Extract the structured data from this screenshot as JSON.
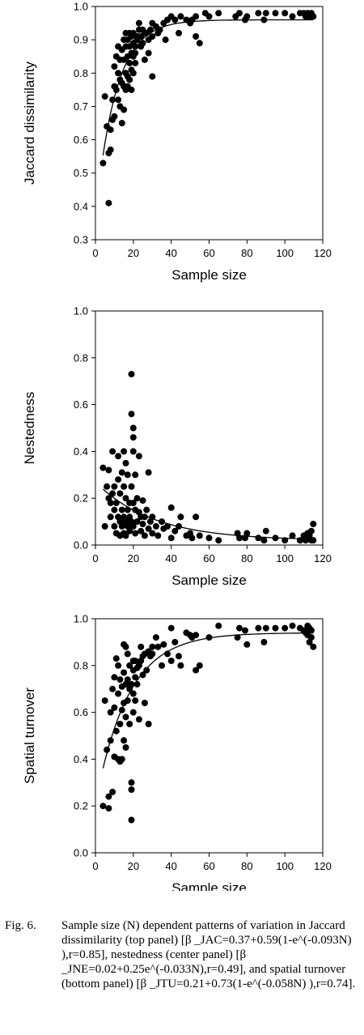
{
  "chart_data": [
    {
      "type": "scatter",
      "xlabel": "Sample size",
      "ylabel": "Jaccard dissimilarity",
      "xlim": [
        0,
        120
      ],
      "ylim": [
        0.3,
        1.0
      ],
      "xticks": [
        "0",
        "20",
        "40",
        "60",
        "80",
        "100",
        "120"
      ],
      "yticks": [
        "0.3",
        "0.4",
        "0.5",
        "0.6",
        "0.7",
        "0.8",
        "0.9",
        "1.0"
      ],
      "grid": false,
      "fit": {
        "a": 0.37,
        "b": 0.59,
        "k": 0.093,
        "form": "a + b*(1 - exp(-k*N))"
      },
      "points": [
        [
          4,
          0.53
        ],
        [
          5,
          0.73
        ],
        [
          6,
          0.64
        ],
        [
          7,
          0.56
        ],
        [
          7,
          0.41
        ],
        [
          8,
          0.63
        ],
        [
          8,
          0.57
        ],
        [
          9,
          0.72
        ],
        [
          9,
          0.66
        ],
        [
          10,
          0.82
        ],
        [
          10,
          0.76
        ],
        [
          10,
          0.67
        ],
        [
          11,
          0.85
        ],
        [
          11,
          0.75
        ],
        [
          12,
          0.88
        ],
        [
          12,
          0.8
        ],
        [
          12,
          0.72
        ],
        [
          13,
          0.84
        ],
        [
          13,
          0.78
        ],
        [
          13,
          0.7
        ],
        [
          14,
          0.87
        ],
        [
          14,
          0.77
        ],
        [
          14,
          0.65
        ],
        [
          15,
          0.9
        ],
        [
          15,
          0.84
        ],
        [
          15,
          0.76
        ],
        [
          15,
          0.69
        ],
        [
          16,
          0.92
        ],
        [
          16,
          0.88
        ],
        [
          16,
          0.8
        ],
        [
          16,
          0.75
        ],
        [
          17,
          0.9
        ],
        [
          17,
          0.85
        ],
        [
          17,
          0.79
        ],
        [
          17,
          0.76
        ],
        [
          18,
          0.92
        ],
        [
          18,
          0.88
        ],
        [
          18,
          0.83
        ],
        [
          18,
          0.78
        ],
        [
          19,
          0.91
        ],
        [
          19,
          0.86
        ],
        [
          19,
          0.81
        ],
        [
          19,
          0.75
        ],
        [
          20,
          0.92
        ],
        [
          20,
          0.89
        ],
        [
          20,
          0.85
        ],
        [
          20,
          0.8
        ],
        [
          21,
          0.88
        ],
        [
          21,
          0.83
        ],
        [
          21,
          0.86
        ],
        [
          22,
          0.91
        ],
        [
          22,
          0.9
        ],
        [
          23,
          0.95
        ],
        [
          23,
          0.93
        ],
        [
          24,
          0.91
        ],
        [
          24,
          0.88
        ],
        [
          25,
          0.93
        ],
        [
          25,
          0.89
        ],
        [
          26,
          0.92
        ],
        [
          26,
          0.84
        ],
        [
          27,
          0.92
        ],
        [
          28,
          0.9
        ],
        [
          28,
          0.86
        ],
        [
          29,
          0.93
        ],
        [
          30,
          0.95
        ],
        [
          30,
          0.91
        ],
        [
          30,
          0.79
        ],
        [
          32,
          0.94
        ],
        [
          33,
          0.92
        ],
        [
          34,
          0.93
        ],
        [
          36,
          0.95
        ],
        [
          37,
          0.9
        ],
        [
          38,
          0.96
        ],
        [
          40,
          0.97
        ],
        [
          42,
          0.96
        ],
        [
          44,
          0.92
        ],
        [
          45,
          0.97
        ],
        [
          48,
          0.96
        ],
        [
          50,
          0.95
        ],
        [
          51,
          0.96
        ],
        [
          53,
          0.97
        ],
        [
          53,
          0.91
        ],
        [
          55,
          0.89
        ],
        [
          58,
          0.98
        ],
        [
          60,
          0.97
        ],
        [
          65,
          0.98
        ],
        [
          74,
          0.97
        ],
        [
          76,
          0.98
        ],
        [
          79,
          0.96
        ],
        [
          80,
          0.97
        ],
        [
          86,
          0.98
        ],
        [
          89,
          0.96
        ],
        [
          90,
          0.98
        ],
        [
          95,
          0.98
        ],
        [
          100,
          0.98
        ],
        [
          104,
          0.97
        ],
        [
          108,
          0.98
        ],
        [
          110,
          0.98
        ],
        [
          111,
          0.97
        ],
        [
          112,
          0.98
        ],
        [
          113,
          0.97
        ],
        [
          114,
          0.98
        ],
        [
          115,
          0.97
        ]
      ]
    },
    {
      "type": "scatter",
      "xlabel": "Sample size",
      "ylabel": "Nestedness",
      "xlim": [
        0,
        120
      ],
      "ylim": [
        0,
        1.0
      ],
      "xticks": [
        "0",
        "20",
        "40",
        "60",
        "80",
        "100",
        "120"
      ],
      "yticks": [
        "0.0",
        "0.2",
        "0.4",
        "0.6",
        "0.8",
        "1.0"
      ],
      "grid": false,
      "fit": {
        "a": 0.02,
        "b": 0.25,
        "k": 0.033,
        "form": "a + b*exp(-k*N)"
      },
      "points": [
        [
          4,
          0.33
        ],
        [
          5,
          0.08
        ],
        [
          6,
          0.25
        ],
        [
          7,
          0.32
        ],
        [
          7,
          0.2
        ],
        [
          8,
          0.18
        ],
        [
          8,
          0.12
        ],
        [
          9,
          0.4
        ],
        [
          9,
          0.22
        ],
        [
          10,
          0.25
        ],
        [
          10,
          0.15
        ],
        [
          10,
          0.08
        ],
        [
          11,
          0.18
        ],
        [
          11,
          0.05
        ],
        [
          12,
          0.38
        ],
        [
          12,
          0.28
        ],
        [
          12,
          0.12
        ],
        [
          13,
          0.22
        ],
        [
          13,
          0.1
        ],
        [
          13,
          0.04
        ],
        [
          14,
          0.31
        ],
        [
          14,
          0.15
        ],
        [
          14,
          0.08
        ],
        [
          15,
          0.4
        ],
        [
          15,
          0.25
        ],
        [
          15,
          0.12
        ],
        [
          15,
          0.05
        ],
        [
          16,
          0.35
        ],
        [
          16,
          0.2
        ],
        [
          16,
          0.1
        ],
        [
          16,
          0.04
        ],
        [
          17,
          0.3
        ],
        [
          17,
          0.15
        ],
        [
          17,
          0.08
        ],
        [
          18,
          0.18
        ],
        [
          18,
          0.12
        ],
        [
          18,
          0.06
        ],
        [
          19,
          0.73
        ],
        [
          19,
          0.56
        ],
        [
          19,
          0.25
        ],
        [
          19,
          0.1
        ],
        [
          20,
          0.5
        ],
        [
          20,
          0.46
        ],
        [
          20,
          0.4
        ],
        [
          20,
          0.18
        ],
        [
          20,
          0.08
        ],
        [
          21,
          0.3
        ],
        [
          21,
          0.15
        ],
        [
          21,
          0.05
        ],
        [
          22,
          0.2
        ],
        [
          22,
          0.1
        ],
        [
          23,
          0.38
        ],
        [
          23,
          0.14
        ],
        [
          24,
          0.12
        ],
        [
          24,
          0.06
        ],
        [
          25,
          0.19
        ],
        [
          25,
          0.09
        ],
        [
          26,
          0.12
        ],
        [
          26,
          0.04
        ],
        [
          27,
          0.15
        ],
        [
          28,
          0.07
        ],
        [
          28,
          0.31
        ],
        [
          29,
          0.1
        ],
        [
          30,
          0.12
        ],
        [
          30,
          0.05
        ],
        [
          32,
          0.08
        ],
        [
          33,
          0.04
        ],
        [
          35,
          0.1
        ],
        [
          36,
          0.07
        ],
        [
          38,
          0.08
        ],
        [
          40,
          0.16
        ],
        [
          40,
          0.03
        ],
        [
          42,
          0.06
        ],
        [
          44,
          0.08
        ],
        [
          45,
          0.12
        ],
        [
          48,
          0.04
        ],
        [
          50,
          0.05
        ],
        [
          51,
          0.03
        ],
        [
          53,
          0.12
        ],
        [
          55,
          0.04
        ],
        [
          60,
          0.03
        ],
        [
          65,
          0.02
        ],
        [
          75,
          0.05
        ],
        [
          76,
          0.03
        ],
        [
          79,
          0.03
        ],
        [
          80,
          0.05
        ],
        [
          86,
          0.03
        ],
        [
          89,
          0.02
        ],
        [
          90,
          0.06
        ],
        [
          95,
          0.03
        ],
        [
          100,
          0.02
        ],
        [
          104,
          0.04
        ],
        [
          108,
          0.02
        ],
        [
          110,
          0.04
        ],
        [
          111,
          0.02
        ],
        [
          112,
          0.05
        ],
        [
          113,
          0.03
        ],
        [
          114,
          0.06
        ],
        [
          115,
          0.09
        ],
        [
          115,
          0.02
        ],
        [
          114,
          0.02
        ],
        [
          113,
          0.04
        ]
      ]
    },
    {
      "type": "scatter",
      "xlabel": "Sample size",
      "ylabel": "Spatial turnover",
      "xlim": [
        0,
        120
      ],
      "ylim": [
        0,
        1.0
      ],
      "xticks": [
        "0",
        "20",
        "40",
        "60",
        "80",
        "100",
        "120"
      ],
      "yticks": [
        "0.0",
        "0.2",
        "0.4",
        "0.6",
        "0.8",
        "1.0"
      ],
      "grid": false,
      "fit": {
        "a": 0.21,
        "b": 0.73,
        "k": 0.058,
        "form": "a + b*(1 - exp(-k*N))"
      },
      "points": [
        [
          4,
          0.2
        ],
        [
          5,
          0.65
        ],
        [
          6,
          0.44
        ],
        [
          7,
          0.19
        ],
        [
          7,
          0.24
        ],
        [
          8,
          0.6
        ],
        [
          8,
          0.48
        ],
        [
          9,
          0.26
        ],
        [
          9,
          0.7
        ],
        [
          10,
          0.75
        ],
        [
          10,
          0.62
        ],
        [
          10,
          0.41
        ],
        [
          11,
          0.83
        ],
        [
          11,
          0.52
        ],
        [
          12,
          0.8
        ],
        [
          12,
          0.68
        ],
        [
          12,
          0.4
        ],
        [
          13,
          0.74
        ],
        [
          13,
          0.55
        ],
        [
          13,
          0.39
        ],
        [
          14,
          0.71
        ],
        [
          14,
          0.61
        ],
        [
          14,
          0.4
        ],
        [
          15,
          0.89
        ],
        [
          15,
          0.77
        ],
        [
          15,
          0.64
        ],
        [
          15,
          0.48
        ],
        [
          16,
          0.88
        ],
        [
          16,
          0.72
        ],
        [
          16,
          0.58
        ],
        [
          16,
          0.45
        ],
        [
          17,
          0.85
        ],
        [
          17,
          0.74
        ],
        [
          17,
          0.65
        ],
        [
          18,
          0.8
        ],
        [
          18,
          0.7
        ],
        [
          18,
          0.55
        ],
        [
          19,
          0.3
        ],
        [
          19,
          0.14
        ],
        [
          19,
          0.27
        ],
        [
          19,
          0.72
        ],
        [
          20,
          0.6
        ],
        [
          20,
          0.78
        ],
        [
          20,
          0.68
        ],
        [
          20,
          0.82
        ],
        [
          21,
          0.75
        ],
        [
          21,
          0.65
        ],
        [
          21,
          0.82
        ],
        [
          22,
          0.79
        ],
        [
          22,
          0.72
        ],
        [
          23,
          0.57
        ],
        [
          23,
          0.8
        ],
        [
          24,
          0.82
        ],
        [
          24,
          0.88
        ],
        [
          25,
          0.76
        ],
        [
          25,
          0.84
        ],
        [
          26,
          0.85
        ],
        [
          26,
          0.64
        ],
        [
          27,
          0.78
        ],
        [
          28,
          0.86
        ],
        [
          28,
          0.55
        ],
        [
          29,
          0.84
        ],
        [
          30,
          0.85
        ],
        [
          30,
          0.88
        ],
        [
          32,
          0.92
        ],
        [
          33,
          0.88
        ],
        [
          35,
          0.8
        ],
        [
          36,
          0.89
        ],
        [
          38,
          0.85
        ],
        [
          40,
          0.96
        ],
        [
          40,
          0.82
        ],
        [
          42,
          0.9
        ],
        [
          44,
          0.84
        ],
        [
          45,
          0.8
        ],
        [
          48,
          0.94
        ],
        [
          50,
          0.93
        ],
        [
          51,
          0.92
        ],
        [
          53,
          0.93
        ],
        [
          55,
          0.8
        ],
        [
          53,
          0.78
        ],
        [
          60,
          0.92
        ],
        [
          65,
          0.97
        ],
        [
          75,
          0.92
        ],
        [
          76,
          0.96
        ],
        [
          79,
          0.95
        ],
        [
          80,
          0.89
        ],
        [
          86,
          0.96
        ],
        [
          89,
          0.9
        ],
        [
          90,
          0.96
        ],
        [
          95,
          0.96
        ],
        [
          100,
          0.96
        ],
        [
          104,
          0.97
        ],
        [
          108,
          0.96
        ],
        [
          110,
          0.95
        ],
        [
          111,
          0.94
        ],
        [
          112,
          0.93
        ],
        [
          113,
          0.96
        ],
        [
          114,
          0.95
        ],
        [
          115,
          0.88
        ],
        [
          114,
          0.92
        ],
        [
          113,
          0.9
        ],
        [
          112,
          0.97
        ]
      ]
    }
  ],
  "caption": {
    "label": "Fig. 6.",
    "text": "Sample size (N) dependent patterns of variation in Jaccard dissimilarity (top panel) [β _JAC=0.37+0.59(1-e^(-0.093N) ),r=0.85], nestedness (center panel) [β _JNE=0.02+0.25e^(-0.033N),r=0.49], and spatial turnover (bottom panel) [β _JTU=0.21+0.73(1-e^(-0.058N) ),r=0.74]."
  }
}
